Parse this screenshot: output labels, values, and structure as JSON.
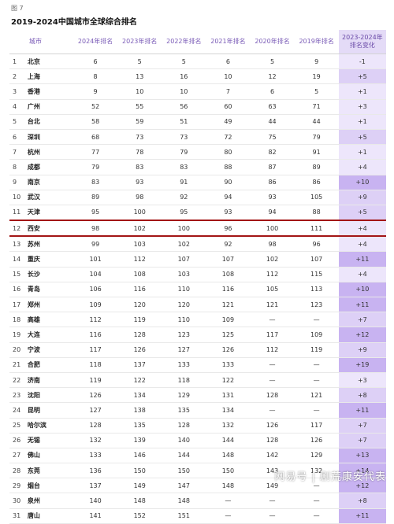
{
  "figure_label": "图 7",
  "title": "2019-2024中国城市全球综合排名",
  "headers": {
    "city": "城市",
    "y2024": "2024年排名",
    "y2023": "2023年排名",
    "y2022": "2022年排名",
    "y2021": "2021年排名",
    "y2020": "2020年排名",
    "y2019": "2019年排名",
    "change": "2023-2024年排名变化"
  },
  "colors": {
    "change_light": "#ede6fb",
    "change_mid": "#ddd0f6",
    "change_dark": "#c8b3f1",
    "highlight_line": "#9b1111"
  },
  "rows": [
    [
      "1",
      "北京",
      "6",
      "5",
      "5",
      "6",
      "5",
      "9",
      "-1"
    ],
    [
      "2",
      "上海",
      "8",
      "13",
      "16",
      "10",
      "12",
      "19",
      "+5"
    ],
    [
      "3",
      "香港",
      "9",
      "10",
      "10",
      "7",
      "6",
      "5",
      "+1"
    ],
    [
      "4",
      "广州",
      "52",
      "55",
      "56",
      "60",
      "63",
      "71",
      "+3"
    ],
    [
      "5",
      "台北",
      "58",
      "59",
      "51",
      "49",
      "44",
      "44",
      "+1"
    ],
    [
      "6",
      "深圳",
      "68",
      "73",
      "73",
      "72",
      "75",
      "79",
      "+5"
    ],
    [
      "7",
      "杭州",
      "77",
      "78",
      "79",
      "80",
      "82",
      "91",
      "+1"
    ],
    [
      "8",
      "成都",
      "79",
      "83",
      "83",
      "88",
      "87",
      "89",
      "+4"
    ],
    [
      "9",
      "南京",
      "83",
      "93",
      "91",
      "90",
      "86",
      "86",
      "+10"
    ],
    [
      "10",
      "武汉",
      "89",
      "98",
      "92",
      "94",
      "93",
      "105",
      "+9"
    ],
    [
      "11",
      "天津",
      "95",
      "100",
      "95",
      "93",
      "94",
      "88",
      "+5"
    ],
    [
      "12",
      "西安",
      "98",
      "102",
      "100",
      "96",
      "100",
      "111",
      "+4"
    ],
    [
      "13",
      "苏州",
      "99",
      "103",
      "102",
      "92",
      "98",
      "96",
      "+4"
    ],
    [
      "14",
      "重庆",
      "101",
      "112",
      "107",
      "107",
      "102",
      "107",
      "+11"
    ],
    [
      "15",
      "长沙",
      "104",
      "108",
      "103",
      "108",
      "112",
      "115",
      "+4"
    ],
    [
      "16",
      "青岛",
      "106",
      "116",
      "110",
      "116",
      "105",
      "113",
      "+10"
    ],
    [
      "17",
      "郑州",
      "109",
      "120",
      "120",
      "121",
      "121",
      "123",
      "+11"
    ],
    [
      "18",
      "高雄",
      "112",
      "119",
      "110",
      "109",
      "—",
      "—",
      "+7"
    ],
    [
      "19",
      "大连",
      "116",
      "128",
      "123",
      "125",
      "117",
      "109",
      "+12"
    ],
    [
      "20",
      "宁波",
      "117",
      "126",
      "127",
      "126",
      "112",
      "119",
      "+9"
    ],
    [
      "21",
      "合肥",
      "118",
      "137",
      "133",
      "133",
      "—",
      "—",
      "+19"
    ],
    [
      "22",
      "济南",
      "119",
      "122",
      "118",
      "122",
      "—",
      "—",
      "+3"
    ],
    [
      "23",
      "沈阳",
      "126",
      "134",
      "129",
      "131",
      "128",
      "121",
      "+8"
    ],
    [
      "24",
      "昆明",
      "127",
      "138",
      "135",
      "134",
      "—",
      "—",
      "+11"
    ],
    [
      "25",
      "哈尔滨",
      "128",
      "135",
      "128",
      "132",
      "126",
      "117",
      "+7"
    ],
    [
      "26",
      "无锡",
      "132",
      "139",
      "140",
      "144",
      "128",
      "126",
      "+7"
    ],
    [
      "27",
      "佛山",
      "133",
      "146",
      "144",
      "148",
      "142",
      "129",
      "+13"
    ],
    [
      "28",
      "东莞",
      "136",
      "150",
      "150",
      "150",
      "143",
      "132",
      "+14"
    ],
    [
      "29",
      "烟台",
      "137",
      "149",
      "147",
      "148",
      "149",
      "—",
      "+12"
    ],
    [
      "30",
      "泉州",
      "140",
      "148",
      "148",
      "—",
      "—",
      "—",
      "+8"
    ],
    [
      "31",
      "唐山",
      "141",
      "152",
      "151",
      "—",
      "—",
      "—",
      "+11"
    ]
  ],
  "watermark": "网易号 | 剧荒康安代表"
}
